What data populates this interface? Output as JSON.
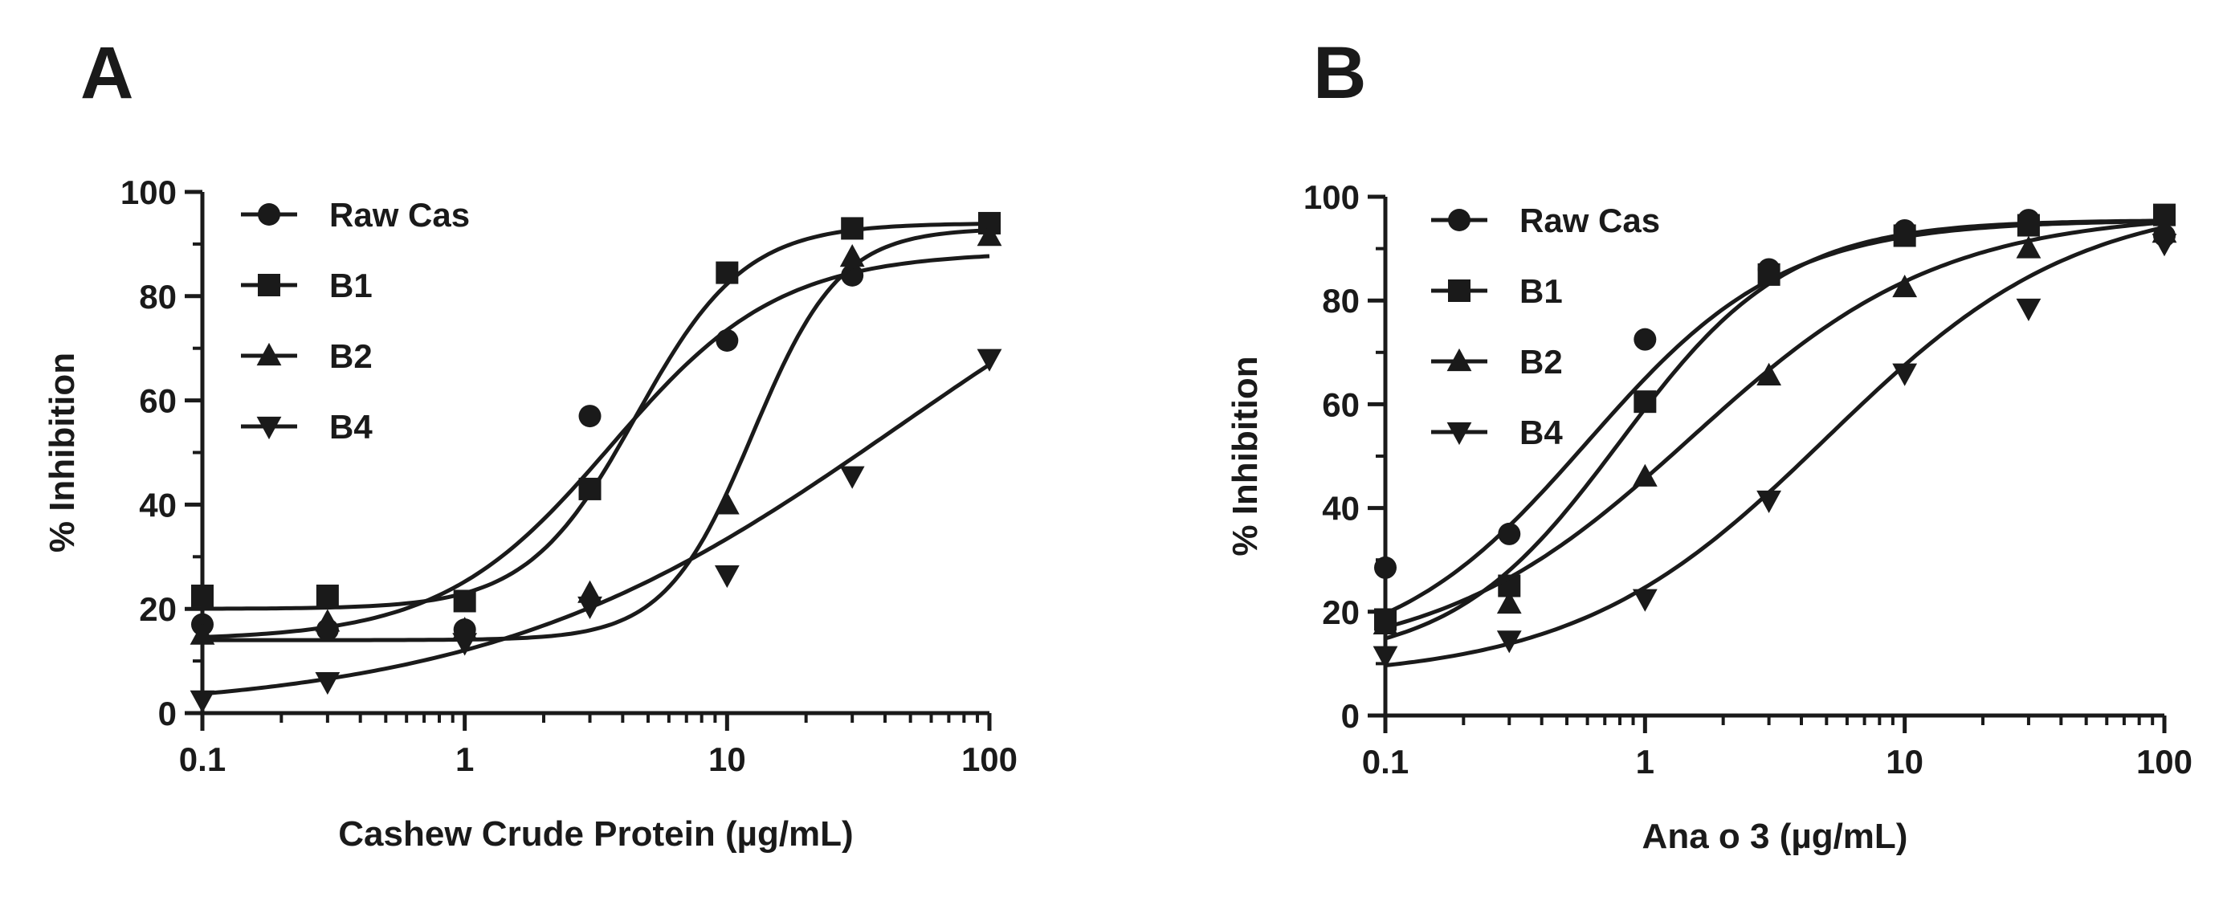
{
  "chart_data": [
    {
      "type": "scatter",
      "panel_label": "A",
      "xlabel": "Cashew Crude Protein (µg/mL)",
      "ylabel": "% Inhibition",
      "xscale": "log",
      "xlim": [
        0.1,
        100
      ],
      "ylim": [
        0,
        100
      ],
      "xticks": [
        0.1,
        1,
        10,
        100
      ],
      "xtick_labels": [
        "0.1",
        "1",
        "10",
        "100"
      ],
      "yticks": [
        0,
        20,
        40,
        60,
        80,
        100
      ],
      "ytick_labels": [
        "0",
        "20",
        "40",
        "60",
        "80",
        "100"
      ],
      "grid": false,
      "legend_position": "top-left",
      "x": [
        0.1,
        0.3,
        1,
        3,
        10,
        30,
        100
      ],
      "series": [
        {
          "name": "Raw Cas",
          "marker": "circle",
          "values": [
            17,
            16,
            16,
            57,
            71.5,
            84,
            94
          ],
          "fit": {
            "bottom": 14,
            "top": 88.5,
            "ec50": 3.6,
            "hill": 1.35
          }
        },
        {
          "name": "B1",
          "marker": "square",
          "values": [
            22.5,
            22.5,
            21.5,
            43,
            84.5,
            93,
            94
          ],
          "fit": {
            "bottom": 20,
            "top": 94,
            "ec50": 4.5,
            "hill": 2.1
          }
        },
        {
          "name": "B2",
          "marker": "triangle-up",
          "values": [
            15,
            17.5,
            16,
            23,
            40,
            87.5,
            91.5
          ],
          "fit": {
            "bottom": 14,
            "top": 93,
            "ec50": 12.5,
            "hill": 2.6
          }
        },
        {
          "name": "B4",
          "marker": "triangle-down",
          "values": [
            2.5,
            6,
            13.5,
            20.5,
            26.5,
            45.5,
            68
          ],
          "fit": {
            "bottom": 0,
            "top": 110,
            "ec50": 45,
            "hill": 0.55
          }
        }
      ]
    },
    {
      "type": "scatter",
      "panel_label": "B",
      "xlabel": "Ana o 3 (µg/mL)",
      "ylabel": "% Inhibition",
      "xscale": "log",
      "xlim": [
        0.1,
        100
      ],
      "ylim": [
        0,
        100
      ],
      "xticks": [
        0.1,
        1,
        10,
        100
      ],
      "xtick_labels": [
        "0.1",
        "1",
        "10",
        "100"
      ],
      "yticks": [
        0,
        20,
        40,
        60,
        80,
        100
      ],
      "ytick_labels": [
        "0",
        "20",
        "40",
        "60",
        "80",
        "100"
      ],
      "grid": false,
      "legend_position": "top-left",
      "x": [
        0.1,
        0.3,
        1,
        3,
        10,
        30,
        100
      ],
      "series": [
        {
          "name": "Raw Cas",
          "marker": "circle",
          "values": [
            28.5,
            35,
            72.5,
            86,
            93.5,
            95.5,
            92.5
          ],
          "fit": {
            "bottom": 10,
            "top": 95.5,
            "ec50": 0.6,
            "hill": 1.15
          }
        },
        {
          "name": "B1",
          "marker": "square",
          "values": [
            18.5,
            25,
            60.5,
            85,
            92.5,
            94.5,
            96.5
          ],
          "fit": {
            "bottom": 10,
            "top": 95.5,
            "ec50": 0.8,
            "hill": 1.35
          }
        },
        {
          "name": "B2",
          "marker": "triangle-up",
          "values": [
            17.5,
            21.5,
            46,
            65.5,
            82.5,
            90,
            93
          ],
          "fit": {
            "bottom": 10,
            "top": 97,
            "ec50": 1.5,
            "hill": 0.9
          }
        },
        {
          "name": "B4",
          "marker": "triangle-down",
          "values": [
            11.5,
            14.5,
            22.5,
            41.5,
            66,
            78.5,
            91
          ],
          "fit": {
            "bottom": 7,
            "top": 100,
            "ec50": 5,
            "hill": 0.9
          }
        }
      ]
    }
  ]
}
